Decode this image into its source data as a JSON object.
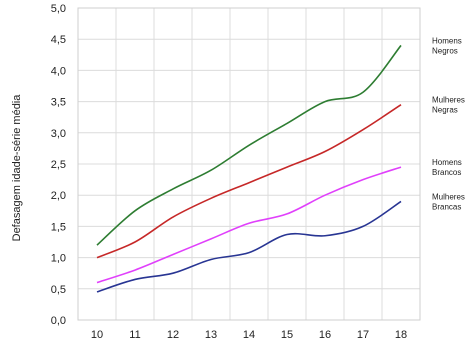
{
  "chart_data": {
    "type": "line",
    "ylabel": "Defasagem idade-série média",
    "x": [
      "10",
      "11",
      "12",
      "13",
      "14",
      "15",
      "16",
      "17",
      "18"
    ],
    "ylim": [
      0,
      5
    ],
    "yticks": [
      "0,0",
      "0,5",
      "1,0",
      "1,5",
      "2,0",
      "2,5",
      "3,0",
      "3,5",
      "4,0",
      "4,5",
      "5,0"
    ],
    "grid": true,
    "series": [
      {
        "name": "Homens Negros",
        "label_lines": [
          "Homens",
          "Negros"
        ],
        "color": "#2e7d32",
        "values": [
          1.2,
          1.75,
          2.1,
          2.4,
          2.8,
          3.15,
          3.5,
          3.65,
          4.4
        ]
      },
      {
        "name": "Mulheres Negras",
        "label_lines": [
          "Mulheres",
          "Negras"
        ],
        "color": "#c62828",
        "values": [
          1.0,
          1.25,
          1.65,
          1.95,
          2.2,
          2.45,
          2.7,
          3.05,
          3.45
        ]
      },
      {
        "name": "Homens Brancos",
        "label_lines": [
          "Homens",
          "Brancos"
        ],
        "color": "#e040fb",
        "values": [
          0.6,
          0.8,
          1.05,
          1.3,
          1.55,
          1.7,
          2.0,
          2.25,
          2.45
        ]
      },
      {
        "name": "Mulheres Brancas",
        "label_lines": [
          "Mulheres",
          "Brancas"
        ],
        "color": "#283593",
        "values": [
          0.45,
          0.65,
          0.75,
          0.97,
          1.08,
          1.37,
          1.35,
          1.5,
          1.9
        ]
      }
    ]
  }
}
